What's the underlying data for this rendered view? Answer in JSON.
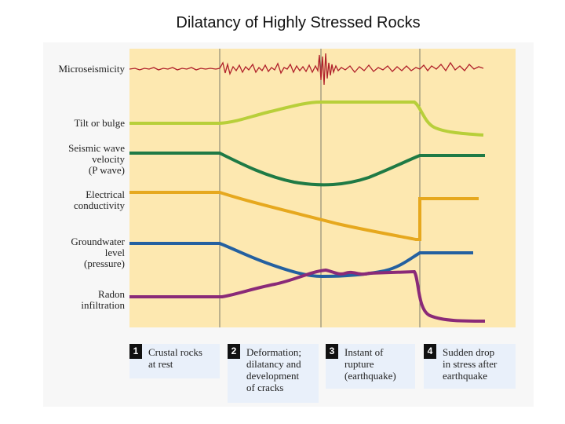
{
  "title": "Dilatancy of Highly Stressed Rocks",
  "parameters": [
    {
      "label": "Microseismicity"
    },
    {
      "label": "Tilt or bulge"
    },
    {
      "label": "Seismic wave\nvelocity\n(P wave)"
    },
    {
      "label": "Electrical\nconductivity"
    },
    {
      "label": "Groundwater\nlevel\n(pressure)"
    },
    {
      "label": "Radon\ninfiltration"
    }
  ],
  "stages": [
    {
      "number": "1",
      "text": "Crustal rocks\nat rest"
    },
    {
      "number": "2",
      "text": "Deformation;\ndilatancy and\ndevelopment\nof cracks"
    },
    {
      "number": "3",
      "text": "Instant of\nrupture\n(earthquake)"
    },
    {
      "number": "4",
      "text": "Sudden drop\nin stress after\nearthquake"
    }
  ],
  "colors": {
    "chart_background": "#fde8b0",
    "microseismicity": "#b0202a",
    "tilt": "#b8cf3a",
    "seismic_velocity": "#1f7a45",
    "electrical_conductivity": "#e6a81e",
    "groundwater": "#2460a0",
    "radon": "#8a2a78",
    "stage_box": "#e9f0fa"
  }
}
